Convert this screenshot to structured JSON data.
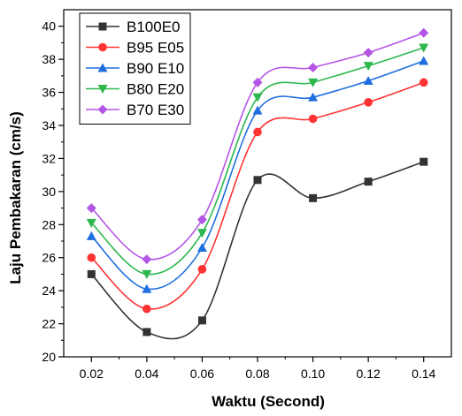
{
  "chart_data": {
    "type": "line",
    "title": "",
    "xlabel": "Waktu (Second)",
    "ylabel": "Laju Pembakaran (cm/s)",
    "x": [
      0.02,
      0.04,
      0.06,
      0.08,
      0.1,
      0.12,
      0.14
    ],
    "x_tick_labels": [
      "0.02",
      "0.04",
      "0.06",
      "0.08",
      "0.10",
      "0.12",
      "0.14"
    ],
    "y_ticks": [
      20,
      22,
      24,
      26,
      28,
      30,
      32,
      34,
      36,
      38,
      40
    ],
    "y_tick_labels": [
      "20",
      "22",
      "24",
      "26",
      "28",
      "30",
      "32",
      "34",
      "36",
      "38",
      "40"
    ],
    "xlim": [
      0.01,
      0.15
    ],
    "ylim": [
      20,
      41
    ],
    "grid": false,
    "legend_position": "top-left",
    "smooth": true,
    "series": [
      {
        "name": "B100E0",
        "color": "#333333",
        "marker": "square",
        "values": [
          25.0,
          21.5,
          22.2,
          30.7,
          29.6,
          30.6,
          31.8
        ]
      },
      {
        "name": "B95 E05",
        "color": "#ff3333",
        "marker": "circle",
        "values": [
          26.0,
          22.9,
          25.3,
          33.6,
          34.4,
          35.4,
          36.6
        ]
      },
      {
        "name": "B90 E10",
        "color": "#1f6fe0",
        "marker": "triangle-up",
        "values": [
          27.3,
          24.1,
          26.6,
          34.9,
          35.7,
          36.7,
          37.9
        ]
      },
      {
        "name": "B80 E20",
        "color": "#2db84d",
        "marker": "triangle-down",
        "values": [
          28.1,
          25.0,
          27.5,
          35.7,
          36.6,
          37.6,
          38.7
        ]
      },
      {
        "name": "B70 E30",
        "color": "#b455e6",
        "marker": "diamond",
        "values": [
          29.0,
          25.9,
          28.3,
          36.6,
          37.5,
          38.4,
          39.6
        ]
      }
    ]
  }
}
